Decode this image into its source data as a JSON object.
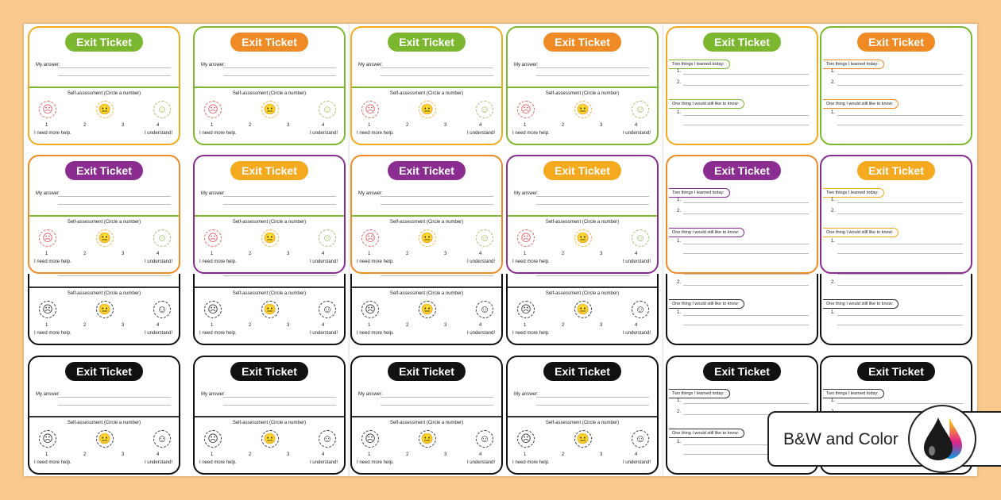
{
  "labels": {
    "title": "Exit Ticket",
    "my_answer": "My answer:",
    "self_assessment": "Self-assessment (Circle a number)",
    "numbers": [
      "1",
      "2",
      "3",
      "4"
    ],
    "low": "I need more help.",
    "high": "I understand!",
    "learned": "Two things I learned today:",
    "still_know": "One thing I would still like to know:",
    "item1": "1.",
    "item2": "2."
  },
  "colors": {
    "green": "#7cb82f",
    "orange": "#f08a24",
    "purple": "#8b2c91",
    "yellow": "#f5a91e",
    "black": "#111111",
    "sad": "#e06060",
    "neutral": "#f0b030",
    "happy": "#9cc060",
    "background": "#f8c98b"
  },
  "rows": [
    [
      {
        "type": "assess",
        "pill": "green",
        "border": "yellow"
      },
      {
        "type": "assess",
        "pill": "orange",
        "border": "green"
      },
      {
        "type": "assess",
        "pill": "green",
        "border": "yellow"
      },
      {
        "type": "assess",
        "pill": "orange",
        "border": "green"
      },
      {
        "type": "learn",
        "pill": "green",
        "border": "yellow"
      },
      {
        "type": "learn",
        "pill": "orange",
        "border": "green"
      }
    ],
    [
      {
        "type": "assess",
        "pill": "purple",
        "border": "orange"
      },
      {
        "type": "assess",
        "pill": "yellow",
        "border": "purple"
      },
      {
        "type": "assess",
        "pill": "purple",
        "border": "orange"
      },
      {
        "type": "assess",
        "pill": "yellow",
        "border": "purple"
      },
      {
        "type": "learn",
        "pill": "purple",
        "border": "orange"
      },
      {
        "type": "learn",
        "pill": "yellow",
        "border": "purple"
      }
    ],
    [
      {
        "type": "assess",
        "pill": "black",
        "border": "black"
      },
      {
        "type": "assess",
        "pill": "black",
        "border": "black"
      },
      {
        "type": "assess",
        "pill": "black",
        "border": "black"
      },
      {
        "type": "assess",
        "pill": "black",
        "border": "black"
      },
      {
        "type": "learn",
        "pill": "black",
        "border": "black"
      },
      {
        "type": "learn",
        "pill": "black",
        "border": "black"
      }
    ],
    [
      {
        "type": "assess",
        "pill": "black",
        "border": "black"
      },
      {
        "type": "assess",
        "pill": "black",
        "border": "black"
      },
      {
        "type": "assess",
        "pill": "black",
        "border": "black"
      },
      {
        "type": "assess",
        "pill": "black",
        "border": "black"
      },
      {
        "type": "learn",
        "pill": "black",
        "border": "black"
      },
      {
        "type": "learn",
        "pill": "black",
        "border": "black"
      }
    ]
  ],
  "badge": {
    "text": "B&W and Color",
    "icon": "ink-drops-icon"
  }
}
